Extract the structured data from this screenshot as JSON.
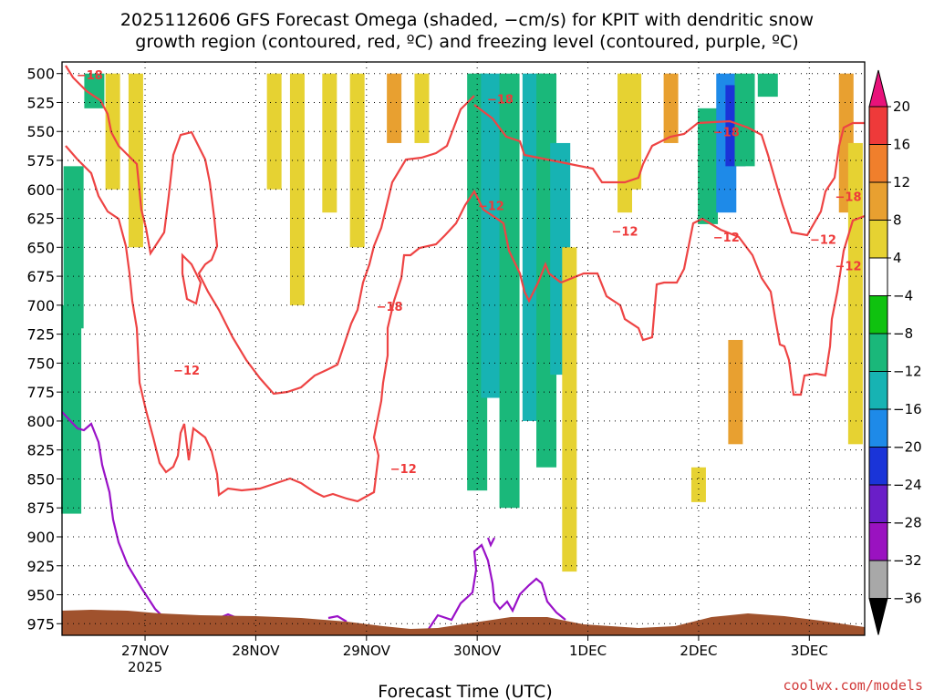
{
  "chart_data": {
    "type": "heatmap",
    "title_line1": "2025112606 GFS Forecast Omega (shaded, −cm/s) for KPIT with dendritic snow",
    "title_line2": "growth region (contoured, red, ºC) and freezing level (contoured, purple, ºC)",
    "xlabel": "Forecast Time (UTC)",
    "credit": "coolwx.com/models",
    "x_start_hour": 6,
    "x_end_hour": 180,
    "x_ticks": [
      {
        "label": "27NOV",
        "sublabel": "2025",
        "hour": 24
      },
      {
        "label": "28NOV",
        "sublabel": "",
        "hour": 48
      },
      {
        "label": "29NOV",
        "sublabel": "",
        "hour": 72
      },
      {
        "label": "30NOV",
        "sublabel": "",
        "hour": 96
      },
      {
        "label": "1DEC",
        "sublabel": "",
        "hour": 120
      },
      {
        "label": "2DEC",
        "sublabel": "",
        "hour": 144
      },
      {
        "label": "3DEC",
        "sublabel": "",
        "hour": 168
      }
    ],
    "y_axis": {
      "units": "hPa",
      "top": 500,
      "bottom": 975,
      "ticks": [
        500,
        525,
        550,
        575,
        600,
        625,
        650,
        675,
        700,
        725,
        750,
        775,
        800,
        825,
        850,
        875,
        900,
        925,
        950,
        975
      ]
    },
    "grid": true,
    "colorbar": {
      "labels": [
        "20",
        "16",
        "12",
        "8",
        "4",
        "−4",
        "−8",
        "−12",
        "−16",
        "−20",
        "−24",
        "−28",
        "−32",
        "−36"
      ],
      "colors": [
        "#e8127a",
        "#ee3a3a",
        "#f07f2c",
        "#e8a030",
        "#e6d232",
        "#ffffff",
        "#0fc20f",
        "#1ab87a",
        "#17b3b3",
        "#1e8ae8",
        "#1a34d8",
        "#6a1ec8",
        "#9a12c0",
        "#a8a8a8",
        "#000000"
      ]
    },
    "shading": [
      {
        "hour": 8,
        "p_top": 700,
        "p_bottom": 880,
        "value": -8
      },
      {
        "hour": 8.5,
        "p_top": 580,
        "p_bottom": 720,
        "value": -8
      },
      {
        "hour": 13,
        "p_top": 500,
        "p_bottom": 530,
        "value": -8
      },
      {
        "hour": 17,
        "p_top": 500,
        "p_bottom": 600,
        "value": 5
      },
      {
        "hour": 22,
        "p_top": 500,
        "p_bottom": 650,
        "value": 5
      },
      {
        "hour": 52,
        "p_top": 500,
        "p_bottom": 600,
        "value": 5
      },
      {
        "hour": 57,
        "p_top": 500,
        "p_bottom": 700,
        "value": 5
      },
      {
        "hour": 64,
        "p_top": 500,
        "p_bottom": 620,
        "value": 5
      },
      {
        "hour": 70,
        "p_top": 500,
        "p_bottom": 650,
        "value": 5
      },
      {
        "hour": 78,
        "p_top": 500,
        "p_bottom": 560,
        "value": 9
      },
      {
        "hour": 84,
        "p_top": 500,
        "p_bottom": 560,
        "value": 5
      },
      {
        "hour": 96,
        "p_top": 500,
        "p_bottom": 860,
        "value": -8
      },
      {
        "hour": 99,
        "p_top": 500,
        "p_bottom": 780,
        "value": -12
      },
      {
        "hour": 103,
        "p_top": 500,
        "p_bottom": 875,
        "value": -8
      },
      {
        "hour": 108,
        "p_top": 500,
        "p_bottom": 800,
        "value": -12
      },
      {
        "hour": 111,
        "p_top": 500,
        "p_bottom": 840,
        "value": -8
      },
      {
        "hour": 114,
        "p_top": 560,
        "p_bottom": 760,
        "value": -14
      },
      {
        "hour": 116,
        "p_top": 650,
        "p_bottom": 930,
        "value": 5
      },
      {
        "hour": 128,
        "p_top": 500,
        "p_bottom": 620,
        "value": 5
      },
      {
        "hour": 130,
        "p_top": 500,
        "p_bottom": 600,
        "value": 7
      },
      {
        "hour": 138,
        "p_top": 500,
        "p_bottom": 560,
        "value": 9
      },
      {
        "hour": 146,
        "p_top": 530,
        "p_bottom": 630,
        "value": -8
      },
      {
        "hour": 150,
        "p_top": 500,
        "p_bottom": 620,
        "value": -16
      },
      {
        "hour": 152,
        "p_top": 510,
        "p_bottom": 580,
        "value": -22
      },
      {
        "hour": 154,
        "p_top": 500,
        "p_bottom": 580,
        "value": -8
      },
      {
        "hour": 159,
        "p_top": 500,
        "p_bottom": 520,
        "value": -8
      },
      {
        "hour": 152,
        "p_top": 730,
        "p_bottom": 820,
        "value": 9
      },
      {
        "hour": 144,
        "p_top": 840,
        "p_bottom": 870,
        "value": 5
      },
      {
        "hour": 176,
        "p_top": 500,
        "p_bottom": 620,
        "value": 9
      },
      {
        "hour": 178,
        "p_top": 560,
        "p_bottom": 820,
        "value": 5
      }
    ],
    "contour_labels": [
      {
        "text": "−18",
        "hour": 12,
        "p": 505,
        "color": "#ee3a3a"
      },
      {
        "text": "−12",
        "hour": 33,
        "p": 760,
        "color": "#ee3a3a"
      },
      {
        "text": "−18",
        "hour": 77,
        "p": 705,
        "color": "#ee3a3a"
      },
      {
        "text": "−12",
        "hour": 80,
        "p": 845,
        "color": "#ee3a3a"
      },
      {
        "text": "−12",
        "hour": 99,
        "p": 618,
        "color": "#ee3a3a"
      },
      {
        "text": "−18",
        "hour": 101,
        "p": 526,
        "color": "#ee3a3a"
      },
      {
        "text": "−12",
        "hour": 128,
        "p": 640,
        "color": "#ee3a3a"
      },
      {
        "text": "−18",
        "hour": 150,
        "p": 554,
        "color": "#ee3a3a"
      },
      {
        "text": "−12",
        "hour": 150,
        "p": 645,
        "color": "#ee3a3a"
      },
      {
        "text": "−12",
        "hour": 171,
        "p": 647,
        "color": "#ee3a3a"
      },
      {
        "text": "−18",
        "hour": 181,
        "p": 610,
        "color": "#ee3a3a"
      },
      {
        "text": "−12",
        "hour": 188,
        "p": 670,
        "color": "#ee3a3a"
      }
    ]
  }
}
